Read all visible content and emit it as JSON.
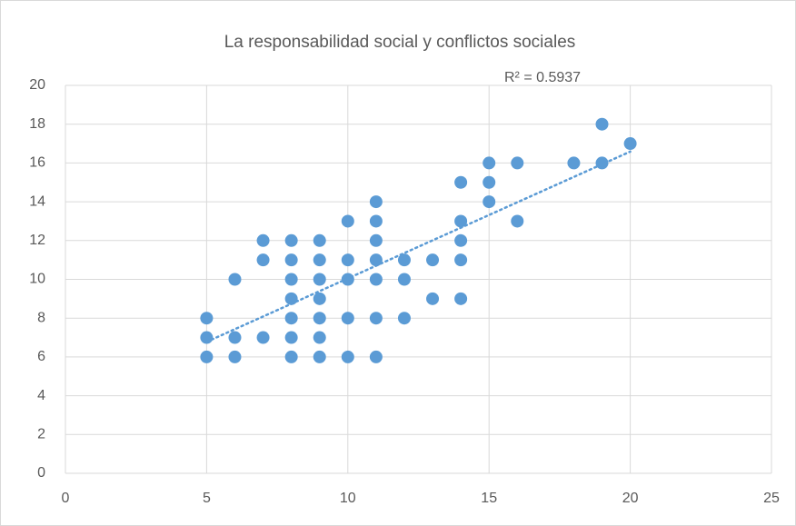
{
  "chart_data": {
    "type": "scatter",
    "title": "La responsabilidad social  y conflictos sociales",
    "annotation": "R² = 0.5937",
    "x": [
      5,
      5,
      5,
      6,
      6,
      6,
      7,
      7,
      7,
      8,
      8,
      8,
      8,
      8,
      8,
      8,
      9,
      9,
      9,
      9,
      9,
      9,
      9,
      10,
      10,
      10,
      10,
      10,
      11,
      11,
      11,
      11,
      11,
      11,
      11,
      12,
      12,
      12,
      13,
      13,
      14,
      14,
      14,
      14,
      14,
      15,
      15,
      15,
      16,
      16,
      18,
      19,
      19,
      20
    ],
    "values": [
      8,
      7,
      6,
      10,
      7,
      6,
      12,
      11,
      7,
      12,
      11,
      10,
      9,
      8,
      7,
      6,
      12,
      11,
      10,
      9,
      8,
      7,
      6,
      13,
      11,
      10,
      8,
      6,
      14,
      13,
      12,
      11,
      10,
      8,
      6,
      11,
      10,
      8,
      11,
      9,
      15,
      13,
      12,
      11,
      9,
      16,
      15,
      14,
      16,
      13,
      16,
      18,
      16,
      17
    ],
    "color": "#5b9bd5",
    "trendline": true,
    "xlim": [
      0,
      25
    ],
    "xticks": [
      0,
      5,
      10,
      15,
      20,
      25
    ],
    "ylim": [
      0,
      20
    ],
    "yticks": [
      0,
      2,
      4,
      6,
      8,
      10,
      12,
      14,
      16,
      18,
      20
    ],
    "grid": true
  }
}
